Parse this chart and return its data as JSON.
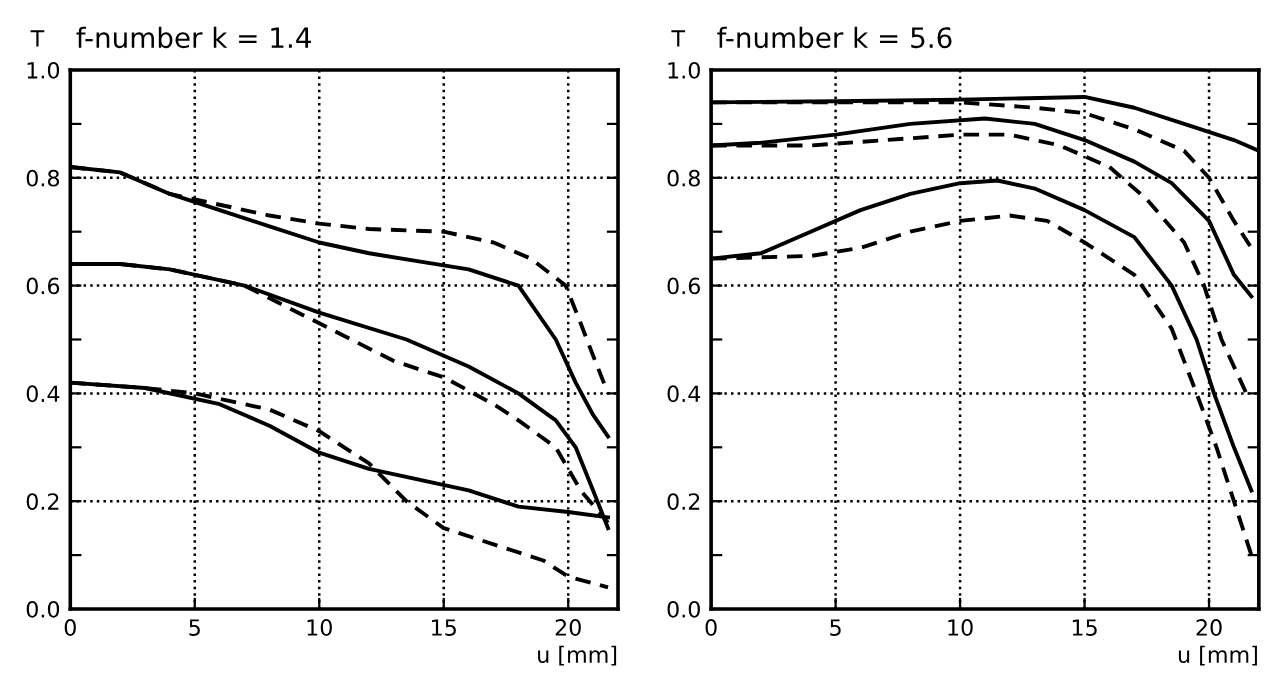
{
  "chart_data": [
    {
      "type": "line",
      "title": "f-number k = 1.4",
      "xlabel": "u [mm]",
      "ylabel": "T",
      "xlim": [
        0,
        22
      ],
      "ylim": [
        0,
        1
      ],
      "xticks": [
        0,
        5,
        10,
        15,
        20
      ],
      "yticks": [
        {
          "value": 0,
          "label": "0.0"
        },
        {
          "value": 0.1,
          "label": null
        },
        0.2,
        {
          "value": 0.3,
          "label": null
        },
        0.4,
        {
          "value": 0.5,
          "label": null
        },
        0.6,
        {
          "value": 0.7,
          "label": null
        },
        0.8,
        {
          "value": 0.9,
          "label": null
        },
        {
          "value": 1,
          "label": "1.0"
        }
      ],
      "grid": true,
      "marker": "none",
      "series": [
        {
          "color": "#000000",
          "line_style": "solid",
          "x": [
            0,
            2,
            4,
            6,
            8,
            10,
            12,
            14,
            16,
            18,
            19.5,
            20.3,
            21,
            21.6
          ],
          "values": [
            0.82,
            0.81,
            0.77,
            0.74,
            0.71,
            0.68,
            0.66,
            0.645,
            0.63,
            0.6,
            0.5,
            0.42,
            0.36,
            0.32
          ]
        },
        {
          "color": "#000000",
          "line_style": "dashed",
          "x": [
            0,
            2,
            4,
            6,
            8,
            10,
            12,
            15,
            17,
            18.5,
            19.9,
            20.5,
            21,
            21.6
          ],
          "values": [
            0.82,
            0.81,
            0.77,
            0.75,
            0.73,
            0.715,
            0.705,
            0.7,
            0.68,
            0.65,
            0.6,
            0.53,
            0.47,
            0.4
          ]
        },
        {
          "color": "#000000",
          "line_style": "solid",
          "x": [
            0,
            2,
            4,
            7,
            10,
            13.5,
            16,
            18,
            19.5,
            20.3,
            21,
            21.6
          ],
          "values": [
            0.64,
            0.64,
            0.63,
            0.6,
            0.55,
            0.5,
            0.45,
            0.4,
            0.35,
            0.3,
            0.22,
            0.15
          ]
        },
        {
          "color": "#000000",
          "line_style": "dashed",
          "x": [
            0,
            2,
            4,
            7,
            10,
            13,
            15,
            17,
            18,
            19.5,
            20.5,
            21.6
          ],
          "values": [
            0.64,
            0.64,
            0.63,
            0.6,
            0.53,
            0.46,
            0.43,
            0.38,
            0.35,
            0.3,
            0.22,
            0.16
          ]
        },
        {
          "color": "#000000",
          "line_style": "solid",
          "x": [
            0,
            3,
            6,
            8,
            10,
            12,
            14,
            16,
            18,
            20,
            21.6
          ],
          "values": [
            0.42,
            0.41,
            0.38,
            0.34,
            0.29,
            0.26,
            0.24,
            0.22,
            0.19,
            0.18,
            0.17
          ]
        },
        {
          "color": "#000000",
          "line_style": "dashed",
          "x": [
            0,
            3,
            5,
            8,
            10,
            12,
            13.5,
            15,
            17,
            19,
            20,
            21.6
          ],
          "values": [
            0.42,
            0.41,
            0.4,
            0.37,
            0.33,
            0.27,
            0.2,
            0.15,
            0.12,
            0.09,
            0.06,
            0.04
          ]
        }
      ]
    },
    {
      "type": "line",
      "title": "f-number k = 5.6",
      "xlabel": "u [mm]",
      "ylabel": "T",
      "xlim": [
        0,
        22
      ],
      "ylim": [
        0,
        1
      ],
      "xticks": [
        0,
        5,
        10,
        15,
        20
      ],
      "yticks": [
        {
          "value": 0,
          "label": "0.0"
        },
        {
          "value": 0.1,
          "label": null
        },
        0.2,
        {
          "value": 0.3,
          "label": null
        },
        0.4,
        {
          "value": 0.5,
          "label": null
        },
        0.6,
        {
          "value": 0.7,
          "label": null
        },
        0.8,
        {
          "value": 0.9,
          "label": null
        },
        {
          "value": 1,
          "label": "1.0"
        }
      ],
      "grid": true,
      "marker": "none",
      "series": [
        {
          "color": "#000000",
          "line_style": "solid",
          "x": [
            0,
            5,
            10,
            15,
            17,
            19,
            21,
            22
          ],
          "values": [
            0.94,
            0.942,
            0.945,
            0.95,
            0.93,
            0.9,
            0.87,
            0.85
          ]
        },
        {
          "color": "#000000",
          "line_style": "dashed",
          "x": [
            0,
            5,
            10,
            13,
            15,
            17,
            19,
            20,
            21,
            21.7
          ],
          "values": [
            0.94,
            0.94,
            0.94,
            0.93,
            0.92,
            0.89,
            0.85,
            0.8,
            0.72,
            0.67
          ]
        },
        {
          "color": "#000000",
          "line_style": "solid",
          "x": [
            0,
            2,
            5,
            8,
            11,
            13,
            15,
            17,
            18.5,
            20,
            21,
            21.7
          ],
          "values": [
            0.86,
            0.865,
            0.88,
            0.9,
            0.91,
            0.9,
            0.87,
            0.83,
            0.79,
            0.72,
            0.62,
            0.58
          ]
        },
        {
          "color": "#000000",
          "line_style": "dashed",
          "x": [
            0,
            4,
            7,
            10,
            12,
            14,
            16,
            17.5,
            19,
            19.8,
            20.5,
            21.5
          ],
          "values": [
            0.86,
            0.86,
            0.87,
            0.88,
            0.88,
            0.86,
            0.82,
            0.76,
            0.68,
            0.6,
            0.5,
            0.4
          ]
        },
        {
          "color": "#000000",
          "line_style": "solid",
          "x": [
            0,
            2,
            4,
            6,
            8,
            10,
            11.5,
            13,
            15,
            17,
            18.5,
            19.5,
            20.2,
            21,
            21.7
          ],
          "values": [
            0.65,
            0.66,
            0.7,
            0.74,
            0.77,
            0.79,
            0.795,
            0.78,
            0.74,
            0.69,
            0.6,
            0.5,
            0.4,
            0.3,
            0.22
          ]
        },
        {
          "color": "#000000",
          "line_style": "dashed",
          "x": [
            0,
            4,
            6,
            8,
            10,
            12,
            13.5,
            15,
            17,
            18.5,
            19.5,
            20.3,
            21,
            21.7
          ],
          "values": [
            0.65,
            0.655,
            0.67,
            0.7,
            0.72,
            0.73,
            0.72,
            0.68,
            0.62,
            0.52,
            0.4,
            0.3,
            0.2,
            0.1
          ]
        }
      ]
    }
  ]
}
